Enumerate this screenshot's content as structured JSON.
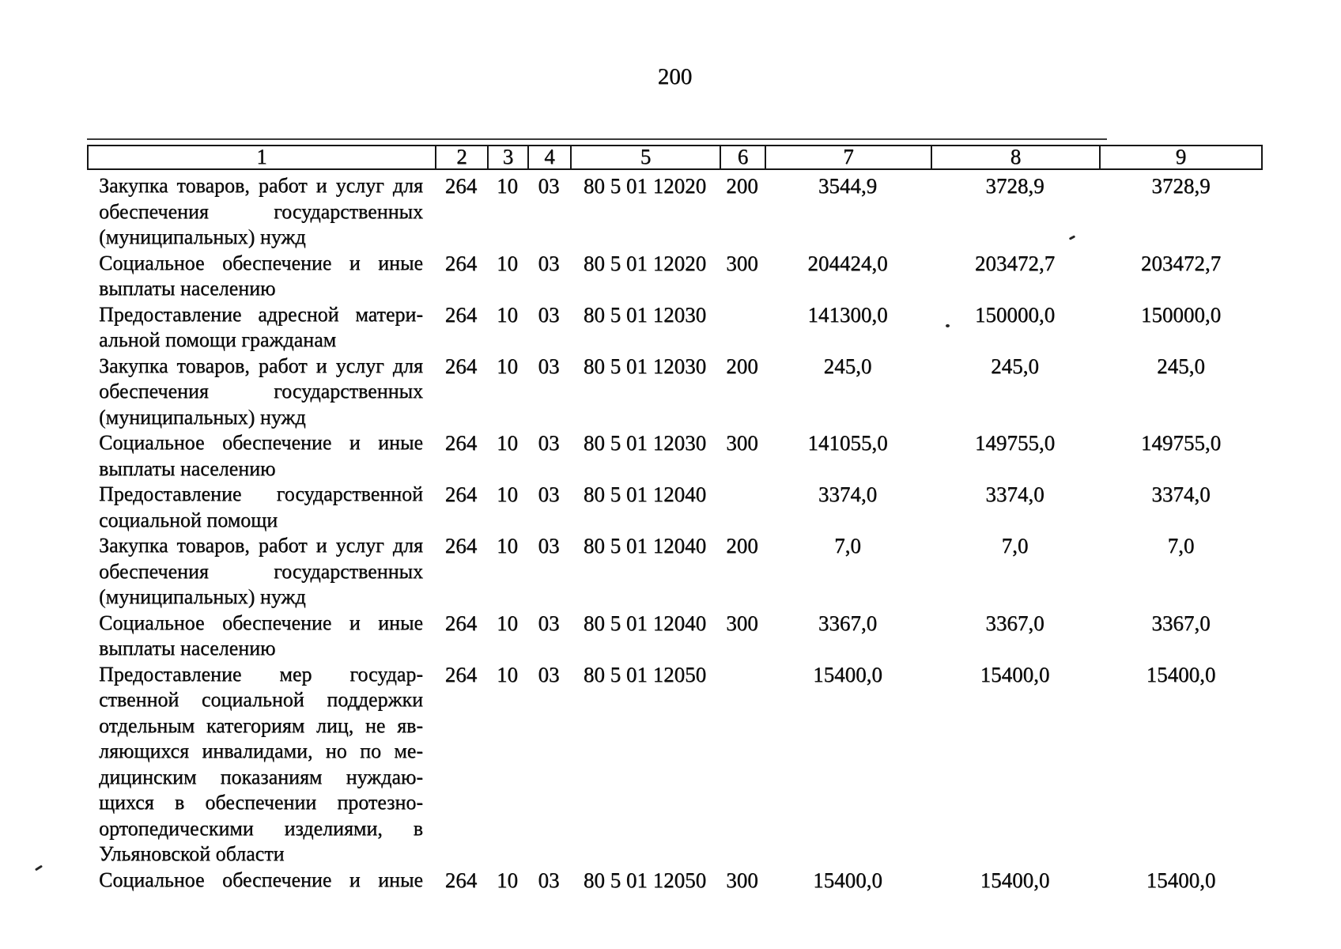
{
  "page": {
    "number": "200"
  },
  "table": {
    "header": [
      "1",
      "2",
      "3",
      "4",
      "5",
      "6",
      "7",
      "8",
      "9"
    ],
    "rows": [
      {
        "desc_lines": [
          "Закупка товаров, работ и услуг для",
          "обеспечения государственных",
          "(муниципальных) нужд"
        ],
        "justify_all": false,
        "c2": "264",
        "c3": "10",
        "c4": "03",
        "c5": "80 5 01 12020",
        "c6": "200",
        "c7": "3544,9",
        "c8": "3728,9",
        "c9": "3728,9"
      },
      {
        "desc_lines": [
          "Социальное обеспечение и иные",
          "выплаты населению"
        ],
        "justify_all": false,
        "c2": "264",
        "c3": "10",
        "c4": "03",
        "c5": "80 5 01 12020",
        "c6": "300",
        "c7": "204424,0",
        "c8": "203472,7",
        "c9": "203472,7"
      },
      {
        "desc_lines": [
          "Предоставление адресной матери-",
          "альной помощи гражданам"
        ],
        "justify_all": false,
        "c2": "264",
        "c3": "10",
        "c4": "03",
        "c5": "80 5 01 12030",
        "c6": "",
        "c7": "141300,0",
        "c8": "150000,0",
        "c9": "150000,0"
      },
      {
        "desc_lines": [
          "Закупка товаров, работ и услуг для",
          "обеспечения государственных",
          "(муниципальных) нужд"
        ],
        "justify_all": false,
        "c2": "264",
        "c3": "10",
        "c4": "03",
        "c5": "80 5 01 12030",
        "c6": "200",
        "c7": "245,0",
        "c8": "245,0",
        "c9": "245,0"
      },
      {
        "desc_lines": [
          "Социальное обеспечение и иные",
          "выплаты населению"
        ],
        "justify_all": false,
        "c2": "264",
        "c3": "10",
        "c4": "03",
        "c5": "80 5 01 12030",
        "c6": "300",
        "c7": "141055,0",
        "c8": "149755,0",
        "c9": "149755,0"
      },
      {
        "desc_lines": [
          "Предоставление государственной",
          "социальной помощи"
        ],
        "justify_all": false,
        "c2": "264",
        "c3": "10",
        "c4": "03",
        "c5": "80 5 01 12040",
        "c6": "",
        "c7": "3374,0",
        "c8": "3374,0",
        "c9": "3374,0"
      },
      {
        "desc_lines": [
          "Закупка товаров, работ и услуг для",
          "обеспечения государственных",
          "(муниципальных) нужд"
        ],
        "justify_all": false,
        "c2": "264",
        "c3": "10",
        "c4": "03",
        "c5": "80 5 01 12040",
        "c6": "200",
        "c7": "7,0",
        "c8": "7,0",
        "c9": "7,0"
      },
      {
        "desc_lines": [
          "Социальное обеспечение и иные",
          "выплаты населению"
        ],
        "justify_all": false,
        "c2": "264",
        "c3": "10",
        "c4": "03",
        "c5": "80 5 01 12040",
        "c6": "300",
        "c7": "3367,0",
        "c8": "3367,0",
        "c9": "3367,0"
      },
      {
        "desc_lines": [
          "Предоставление мер государ-",
          "ственной социальной поддержки",
          "отдельным категориям лиц, не яв-",
          "ляющихся инвалидами, но по ме-",
          "дицинским показаниям нуждаю-",
          "щихся в обеспечении протезно-",
          "ортопедическими изделиями, в",
          "Ульяновской области"
        ],
        "justify_all": false,
        "c2": "264",
        "c3": "10",
        "c4": "03",
        "c5": "80 5 01 12050",
        "c6": "",
        "c7": "15400,0",
        "c8": "15400,0",
        "c9": "15400,0"
      },
      {
        "desc_lines": [
          "Социальное обеспечение и иные"
        ],
        "justify_all": true,
        "c2": "264",
        "c3": "10",
        "c4": "03",
        "c5": "80 5 01 12050",
        "c6": "300",
        "c7": "15400,0",
        "c8": "15400,0",
        "c9": "15400,0"
      }
    ]
  }
}
